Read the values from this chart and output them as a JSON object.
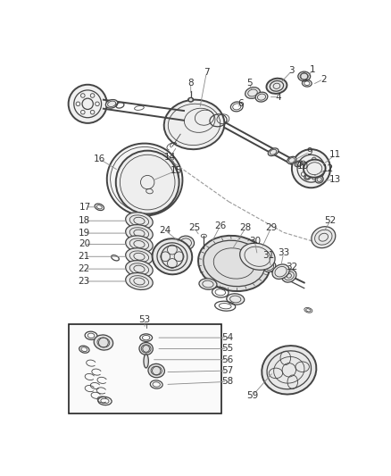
{
  "bg_color": "#ffffff",
  "fig_width": 4.38,
  "fig_height": 5.33,
  "dpi": 100,
  "line_color": "#444444",
  "label_fontsize": 7.5,
  "label_color": "#333333",
  "callout_line_color": "#888888",
  "box_color": "#222222"
}
